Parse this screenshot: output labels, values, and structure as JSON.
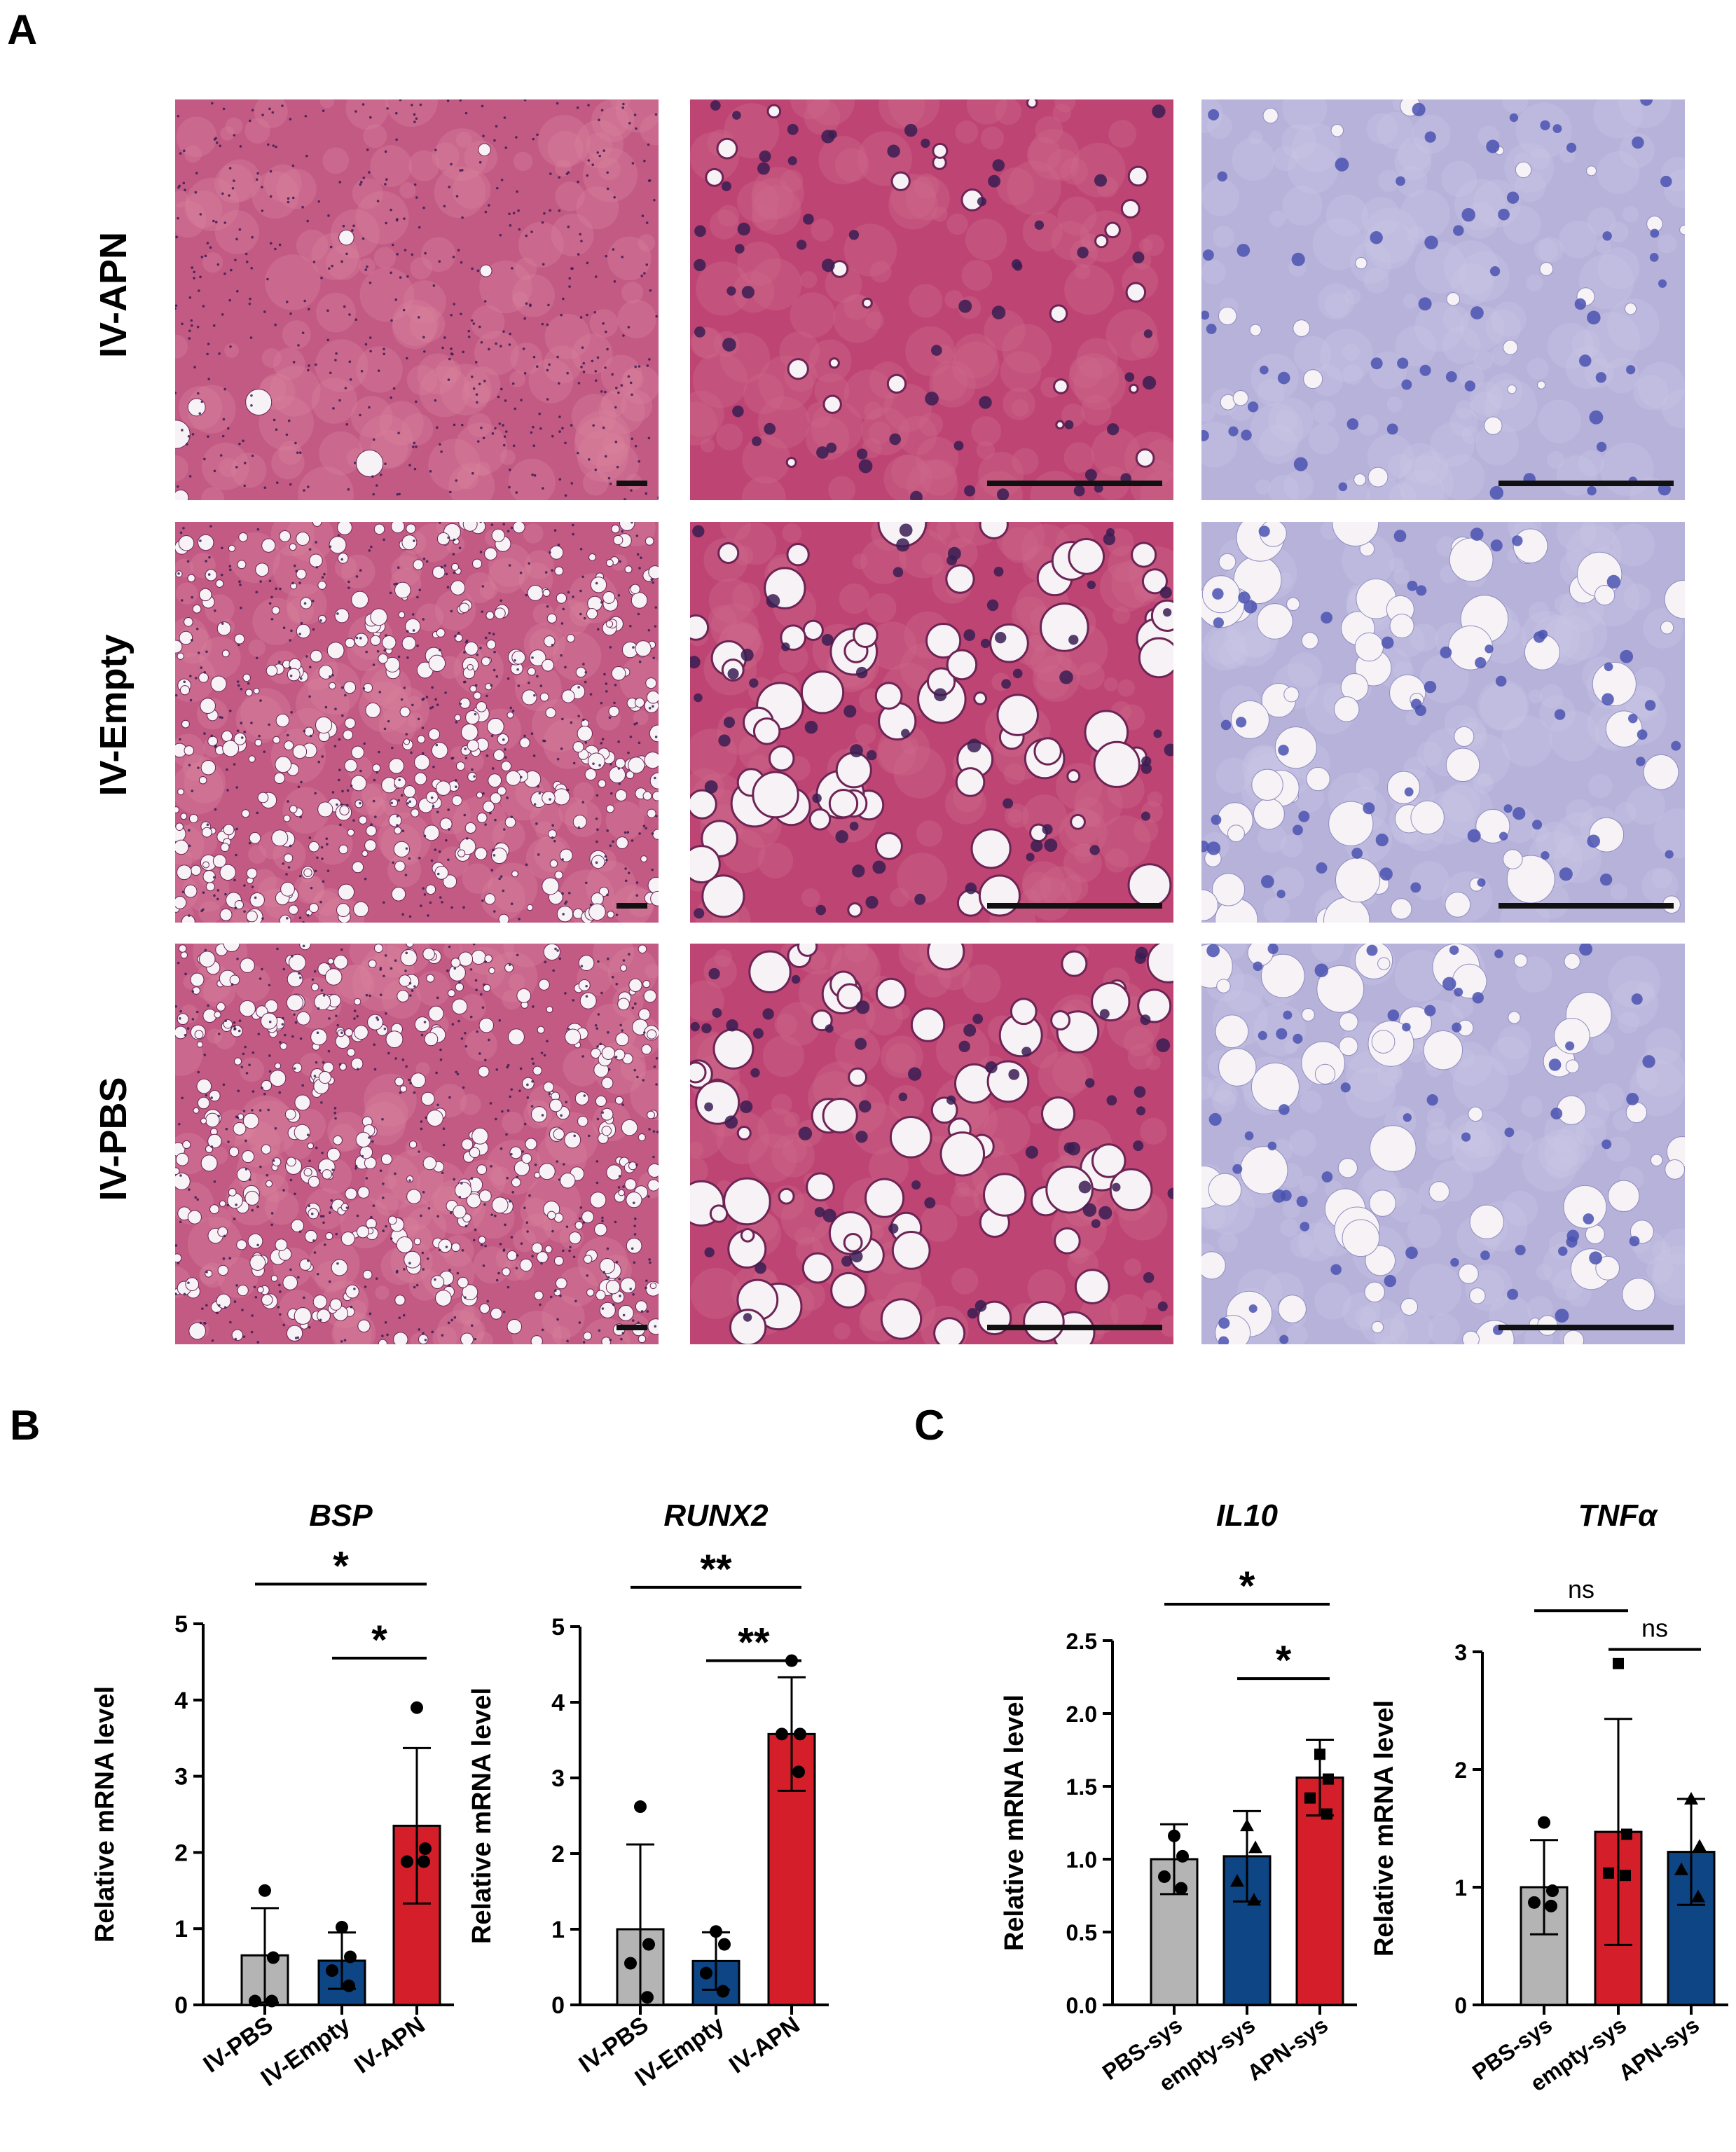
{
  "panels": {
    "A": "A",
    "B": "B",
    "C": "C"
  },
  "rows": [
    {
      "label": "IV-APN",
      "tone": "apn"
    },
    {
      "label": "IV-Empty",
      "tone": "empty"
    },
    {
      "label": "IV-PBS",
      "tone": "pbs"
    }
  ],
  "colors": {
    "grey": "#b4b4b4",
    "blue": "#0d4585",
    "red": "#d41f2a",
    "he_pink": "#c04678",
    "ihc_blue": "#b7b3dc"
  },
  "chart_data": [
    {
      "type": "bar",
      "title": "BSP",
      "ylabel": "Relative mRNA level",
      "categories": [
        "IV-PBS",
        "IV-Empty",
        "IV-APN"
      ],
      "colors": [
        "#b4b4b4",
        "#0d4585",
        "#d41f2a"
      ],
      "values": [
        0.65,
        0.58,
        2.35
      ],
      "errors": [
        0.62,
        0.37,
        1.02
      ],
      "points": [
        [
          1.5,
          0.62,
          0.05,
          0.05
        ],
        [
          1.02,
          0.63,
          0.45,
          0.25
        ],
        [
          3.9,
          2.05,
          1.88,
          1.88
        ]
      ],
      "marker": [
        "circle",
        "circle",
        "circle"
      ],
      "ylim": [
        0,
        5
      ],
      "yticks": [
        "0",
        "1",
        "2",
        "3",
        "4",
        "5"
      ],
      "sig": [
        {
          "from": 0,
          "to": 2,
          "label": "*",
          "y": 5.52
        },
        {
          "from": 1,
          "to": 2,
          "label": "*",
          "y": 4.55
        }
      ]
    },
    {
      "type": "bar",
      "title": "RUNX2",
      "ylabel": "Relative mRNA level",
      "categories": [
        "IV-PBS",
        "IV-Empty",
        "IV-APN"
      ],
      "colors": [
        "#b4b4b4",
        "#0d4585",
        "#d41f2a"
      ],
      "values": [
        1.0,
        0.58,
        3.58
      ],
      "errors": [
        1.12,
        0.38,
        0.75
      ],
      "points": [
        [
          2.62,
          0.8,
          0.55,
          0.1
        ],
        [
          0.97,
          0.8,
          0.42,
          0.18
        ],
        [
          4.55,
          3.58,
          3.58,
          3.08
        ]
      ],
      "marker": [
        "circle",
        "circle",
        "circle"
      ],
      "ylim": [
        0,
        5
      ],
      "yticks": [
        "0",
        "1",
        "2",
        "3",
        "4",
        "5"
      ],
      "sig": [
        {
          "from": 0,
          "to": 2,
          "label": "**",
          "y": 5.52
        },
        {
          "from": 1,
          "to": 2,
          "label": "**",
          "y": 4.55
        }
      ]
    },
    {
      "type": "bar",
      "title": "IL10",
      "ylabel": "Relative mRNA level",
      "categories": [
        "PBS-sys",
        "empty-sys",
        "APN-sys"
      ],
      "colors": [
        "#b4b4b4",
        "#0d4585",
        "#d41f2a"
      ],
      "values": [
        1.0,
        1.02,
        1.56
      ],
      "errors": [
        0.24,
        0.31,
        0.26
      ],
      "points": [
        [
          1.16,
          1.02,
          0.88,
          0.8
        ],
        [
          1.23,
          1.08,
          0.85,
          0.72
        ],
        [
          1.72,
          1.55,
          1.42,
          1.31
        ]
      ],
      "marker": [
        "circle",
        "triangle",
        "square"
      ],
      "ylim": [
        0,
        2.5
      ],
      "yticks": [
        "0.0",
        "0.5",
        "1.0",
        "1.5",
        "2.0",
        "2.5"
      ],
      "sig": [
        {
          "from": 0,
          "to": 2,
          "label": "*",
          "y": 2.75
        },
        {
          "from": 1,
          "to": 2,
          "label": "*",
          "y": 2.24
        }
      ]
    },
    {
      "type": "bar",
      "title": "TNFα",
      "ylabel": "Relative mRNA level",
      "categories": [
        "PBS-sys",
        "empty-sys",
        "APN-sys"
      ],
      "colors": [
        "#b4b4b4",
        "#d41f2a",
        "#0d4585"
      ],
      "values": [
        1.0,
        1.47,
        1.3
      ],
      "errors": [
        0.4,
        0.96,
        0.45
      ],
      "points": [
        [
          1.55,
          0.97,
          0.87,
          0.84
        ],
        [
          2.9,
          1.45,
          1.12,
          1.1
        ],
        [
          1.75,
          1.35,
          1.15,
          0.92
        ]
      ],
      "marker": [
        "circle",
        "square",
        "triangle"
      ],
      "ylim": [
        0,
        3
      ],
      "yticks": [
        "0",
        "1",
        "2",
        "3"
      ],
      "sig": [
        {
          "from": 0,
          "to": 1,
          "label": "ns",
          "y": 3.35
        },
        {
          "from": 1,
          "to": 2,
          "label": "ns",
          "y": 3.02
        }
      ]
    }
  ]
}
